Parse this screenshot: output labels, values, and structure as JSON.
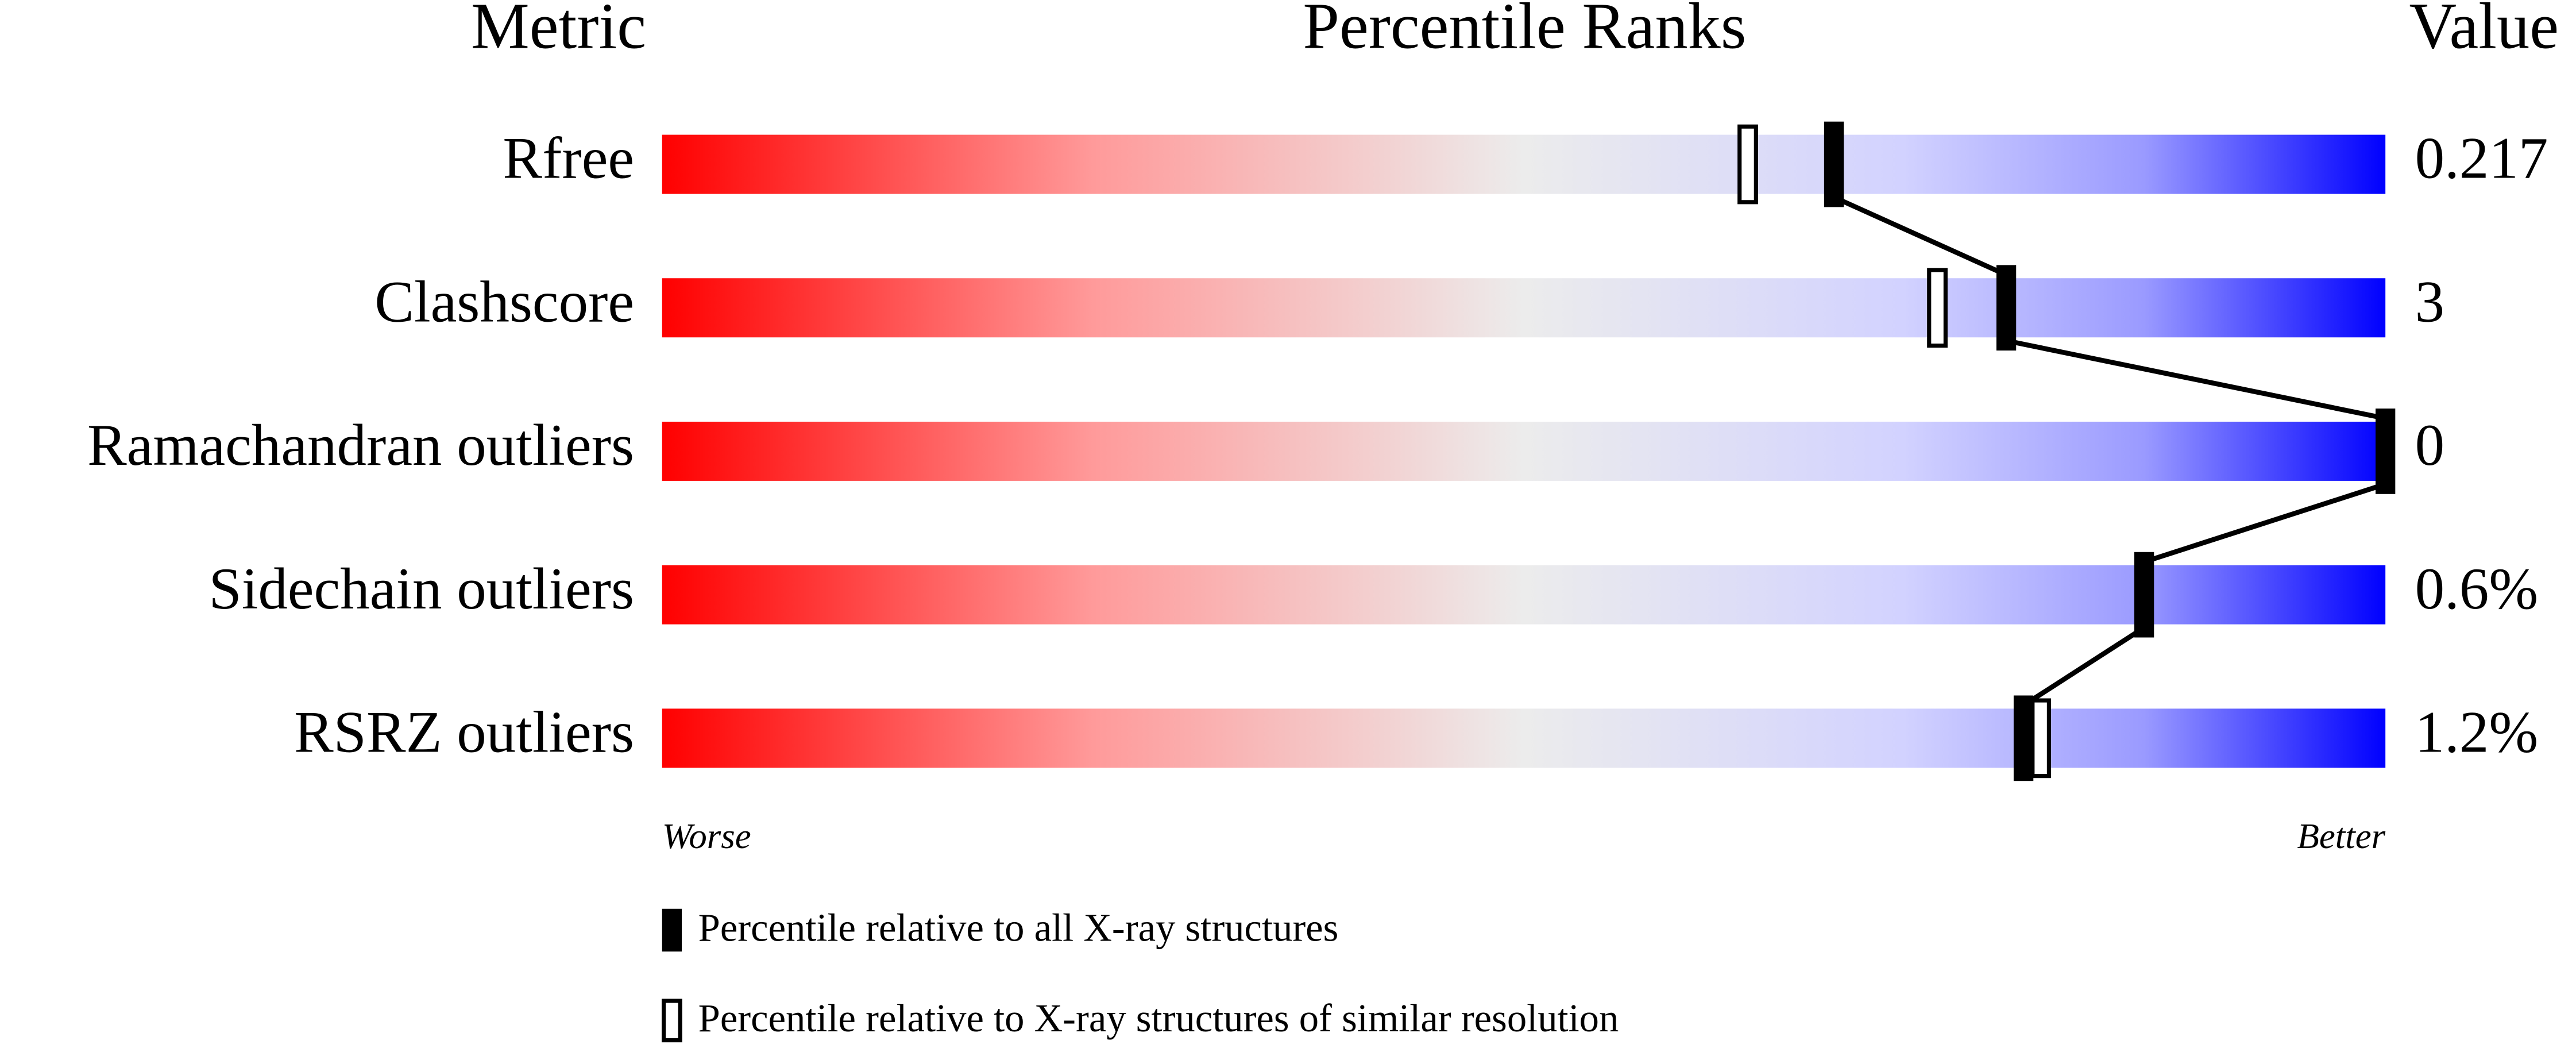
{
  "chart_data": {
    "type": "percentile-slider",
    "headers": [
      "Metric",
      "Percentile Ranks",
      "Value"
    ],
    "categories": [
      "Rfree",
      "Clashscore",
      "Ramachandran outliers",
      "Sidechain outliers",
      "RSRZ outliers"
    ],
    "metric_values": [
      "0.217",
      "3",
      "0",
      "0.6%",
      "1.2%"
    ],
    "xlim": [
      0,
      100
    ],
    "axis_labels": [
      "Worse",
      "Better"
    ],
    "series": [
      {
        "name": "Percentile relative to all X-ray structures",
        "color": "#000000",
        "values": [
          68,
          78,
          100,
          86,
          79
        ]
      },
      {
        "name": "Percentile relative to X-ray structures of similar resolution",
        "color": "#000000",
        "values": [
          63,
          74,
          null,
          null,
          80
        ]
      }
    ]
  }
}
